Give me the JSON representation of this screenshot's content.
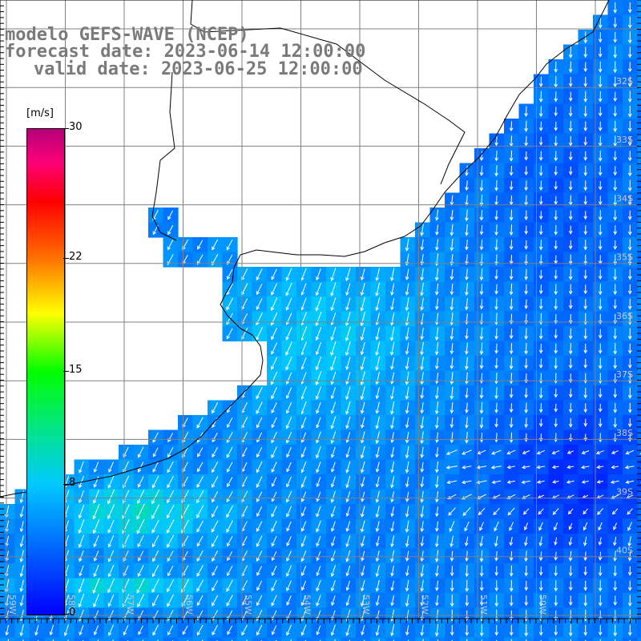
{
  "title": {
    "line1": "modelo GEFS-WAVE (NCEP)",
    "line2": "forecast date: 2023-06-14 12:00:00",
    "line3": "valid date: 2023-06-25 12:00:00"
  },
  "colorbar": {
    "unit": "[m/s]",
    "ticks": [
      "30",
      "22",
      "15",
      "8",
      "0"
    ],
    "tick_values": [
      30,
      22,
      15,
      8,
      0
    ],
    "range": [
      0,
      30
    ],
    "colors": [
      "#0000ff",
      "#00c8ff",
      "#00e0a0",
      "#00ff00",
      "#ffff00",
      "#ff6a00",
      "#ff0000",
      "#ff0077",
      "#b4007a"
    ]
  },
  "map": {
    "lat_labels": [
      "32S",
      "33S",
      "34S",
      "35S",
      "36S",
      "37S",
      "38S",
      "39S",
      "40S"
    ],
    "lon_labels": [
      "59W",
      "58W",
      "57W",
      "56W",
      "55W",
      "54W",
      "53W",
      "52W",
      "51W",
      "50W"
    ],
    "land_color": "#ffffff",
    "grid_color": "#808080",
    "arrow_color": "#ffffff"
  }
}
